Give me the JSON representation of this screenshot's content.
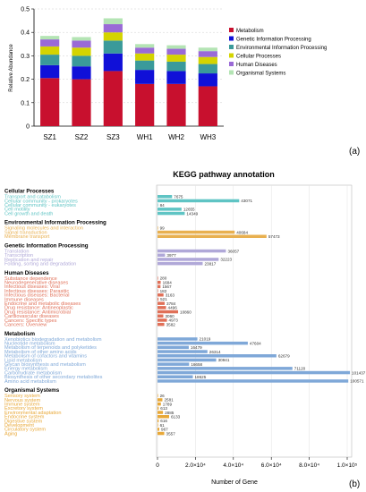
{
  "chart_data": [
    {
      "type": "bar",
      "stacked": true,
      "panel_label": "(a)",
      "title": "",
      "xlabel": "",
      "ylabel": "Relative Abundance",
      "ylim": [
        0,
        0.5
      ],
      "yticks": [
        "0",
        "0.1",
        "0.2",
        "0.3",
        "0.4",
        "0.5"
      ],
      "categories": [
        "SZ1",
        "SZ2",
        "SZ3",
        "WH1",
        "WH2",
        "WH3"
      ],
      "legend_position": "right",
      "series": [
        {
          "name": "Metabolism",
          "color": "#c8102e",
          "values": [
            0.205,
            0.2,
            0.235,
            0.18,
            0.18,
            0.17
          ]
        },
        {
          "name": "Genetic Information Processing",
          "color": "#1010d8",
          "values": [
            0.055,
            0.055,
            0.075,
            0.06,
            0.055,
            0.055
          ]
        },
        {
          "name": "Environmental Information Processing",
          "color": "#3a9a9a",
          "values": [
            0.045,
            0.045,
            0.055,
            0.04,
            0.04,
            0.04
          ]
        },
        {
          "name": "Cellular Processes",
          "color": "#d4d400",
          "values": [
            0.035,
            0.035,
            0.035,
            0.03,
            0.03,
            0.03
          ]
        },
        {
          "name": "Human Diseases",
          "color": "#9a6ad6",
          "values": [
            0.03,
            0.03,
            0.035,
            0.025,
            0.025,
            0.025
          ]
        },
        {
          "name": "Organismal Systems",
          "color": "#b4e4b4",
          "values": [
            0.015,
            0.015,
            0.025,
            0.015,
            0.015,
            0.015
          ]
        }
      ]
    },
    {
      "type": "bar",
      "orientation": "horizontal",
      "panel_label": "(b)",
      "title": "KEGG pathway annotation",
      "xlabel": "Number of Gene",
      "ylabel": "",
      "xlim": [
        0,
        100000
      ],
      "xticks": [
        "0",
        "2.0×10⁴",
        "4.0×10⁴",
        "6.0×10⁴",
        "8.0×10⁴",
        "1.0×10⁵"
      ],
      "groups": [
        {
          "name": "Cellular Processes",
          "color": "#5fc4c4",
          "items": [
            {
              "label": "Transport and catabolism",
              "value": 7675
            },
            {
              "label": "Cellular community - prokaryotes",
              "value": 43071
            },
            {
              "label": "Cellular community - eukaryotes",
              "value": 84
            },
            {
              "label": "Cell motility",
              "value": 12655
            },
            {
              "label": "Cell growth and death",
              "value": 14349
            }
          ]
        },
        {
          "name": "Environmental Information Processing",
          "color": "#e8b050",
          "items": [
            {
              "label": "Signaling molecules and interaction",
              "value": 99
            },
            {
              "label": "Signal transduction",
              "value": 40684
            },
            {
              "label": "Membrane transport",
              "value": 57473
            }
          ]
        },
        {
          "name": "Genetic Information Processing",
          "color": "#b0a8d8",
          "items": [
            {
              "label": "Translation",
              "value": 36057
            },
            {
              "label": "Transcription",
              "value": 3977
            },
            {
              "label": "Replication and repair",
              "value": 32223
            },
            {
              "label": "Folding, sorting and degradation",
              "value": 23817
            }
          ]
        },
        {
          "name": "Human Diseases",
          "color": "#e07058",
          "items": [
            {
              "label": "Substance dependence",
              "value": 280
            },
            {
              "label": "Neurodegenerative diseases",
              "value": 1684
            },
            {
              "label": "Infectious diseases: Viral",
              "value": 1567
            },
            {
              "label": "Infectious diseases: Parasitic",
              "value": 182
            },
            {
              "label": "Infectious diseases: Bacterial",
              "value": 3163
            },
            {
              "label": "Immune diseases",
              "value": 521
            },
            {
              "label": "Endocrine and metabolic diseases",
              "value": 3784
            },
            {
              "label": "Drug resistance: Antineoplastic",
              "value": 4496
            },
            {
              "label": "Drug resistance: Antimicrobial",
              "value": 10860
            },
            {
              "label": "Cardiovascular diseases",
              "value": 3060
            },
            {
              "label": "Cancers: Specific types",
              "value": 4973
            },
            {
              "label": "Cancers: Overview",
              "value": 3582
            }
          ]
        },
        {
          "name": "Metabolism",
          "color": "#7fa8d8",
          "items": [
            {
              "label": "Xenobiotics biodegradation and metabolism",
              "value": 21019
            },
            {
              "label": "Nucleotide metabolism",
              "value": 47604
            },
            {
              "label": "Metabolism of terpenoids and polyketides",
              "value": 16479
            },
            {
              "label": "Metabolism of other amino acids",
              "value": 26314
            },
            {
              "label": "Metabolism of cofactors and vitamins",
              "value": 62679
            },
            {
              "label": "Lipid metabolism",
              "value": 30941
            },
            {
              "label": "Glycan biosynthesis and metabolism",
              "value": 16658
            },
            {
              "label": "Energy metabolism",
              "value": 71120
            },
            {
              "label": "Carbohydrate metabolism",
              "value": 101437
            },
            {
              "label": "Biosynthesis of other secondary metabolites",
              "value": 18625
            },
            {
              "label": "Amino acid metabolism",
              "value": 100571
            }
          ]
        },
        {
          "name": "Organismal Systems",
          "color": "#e8a838",
          "items": [
            {
              "label": "Sensory system",
              "value": 26
            },
            {
              "label": "Nervous system",
              "value": 2581
            },
            {
              "label": "Immune system",
              "value": 1789
            },
            {
              "label": "Excretory system",
              "value": 613
            },
            {
              "label": "Environmental adaptation",
              "value": 2885
            },
            {
              "label": "Endocrine system",
              "value": 6133
            },
            {
              "label": "Digestive system",
              "value": 616
            },
            {
              "label": "Development",
              "value": 61
            },
            {
              "label": "Circulatory system",
              "value": 967
            },
            {
              "label": "Aging",
              "value": 3557
            }
          ]
        }
      ]
    }
  ]
}
